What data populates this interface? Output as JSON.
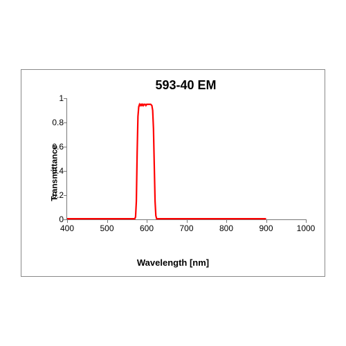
{
  "chart": {
    "type": "line",
    "title": "593-40 EM",
    "title_fontsize": 18,
    "xlabel": "Wavelength [nm]",
    "ylabel": "Transmittance",
    "label_fontsize": 13,
    "tick_fontsize": 12,
    "xlim": [
      400,
      1000
    ],
    "ylim": [
      0,
      1
    ],
    "xticks": [
      400,
      500,
      600,
      700,
      800,
      900,
      1000
    ],
    "yticks": [
      0,
      0.2,
      0.4,
      0.6,
      0.8,
      1
    ],
    "grid": false,
    "background_color": "#ffffff",
    "border_color": "#888888",
    "axis_color": "#777777",
    "series": {
      "color": "#ff0000",
      "line_width": 2.2,
      "x": [
        400,
        570,
        572,
        574,
        576,
        578,
        580,
        582,
        584,
        586,
        588,
        590,
        592,
        594,
        596,
        598,
        600,
        605,
        610,
        613,
        615,
        617,
        619,
        621,
        623,
        625,
        900
      ],
      "y": [
        0.005,
        0.005,
        0.02,
        0.15,
        0.55,
        0.85,
        0.93,
        0.95,
        0.94,
        0.95,
        0.94,
        0.95,
        0.94,
        0.95,
        0.95,
        0.94,
        0.95,
        0.95,
        0.95,
        0.94,
        0.9,
        0.75,
        0.45,
        0.15,
        0.03,
        0.005,
        0.005
      ]
    }
  }
}
